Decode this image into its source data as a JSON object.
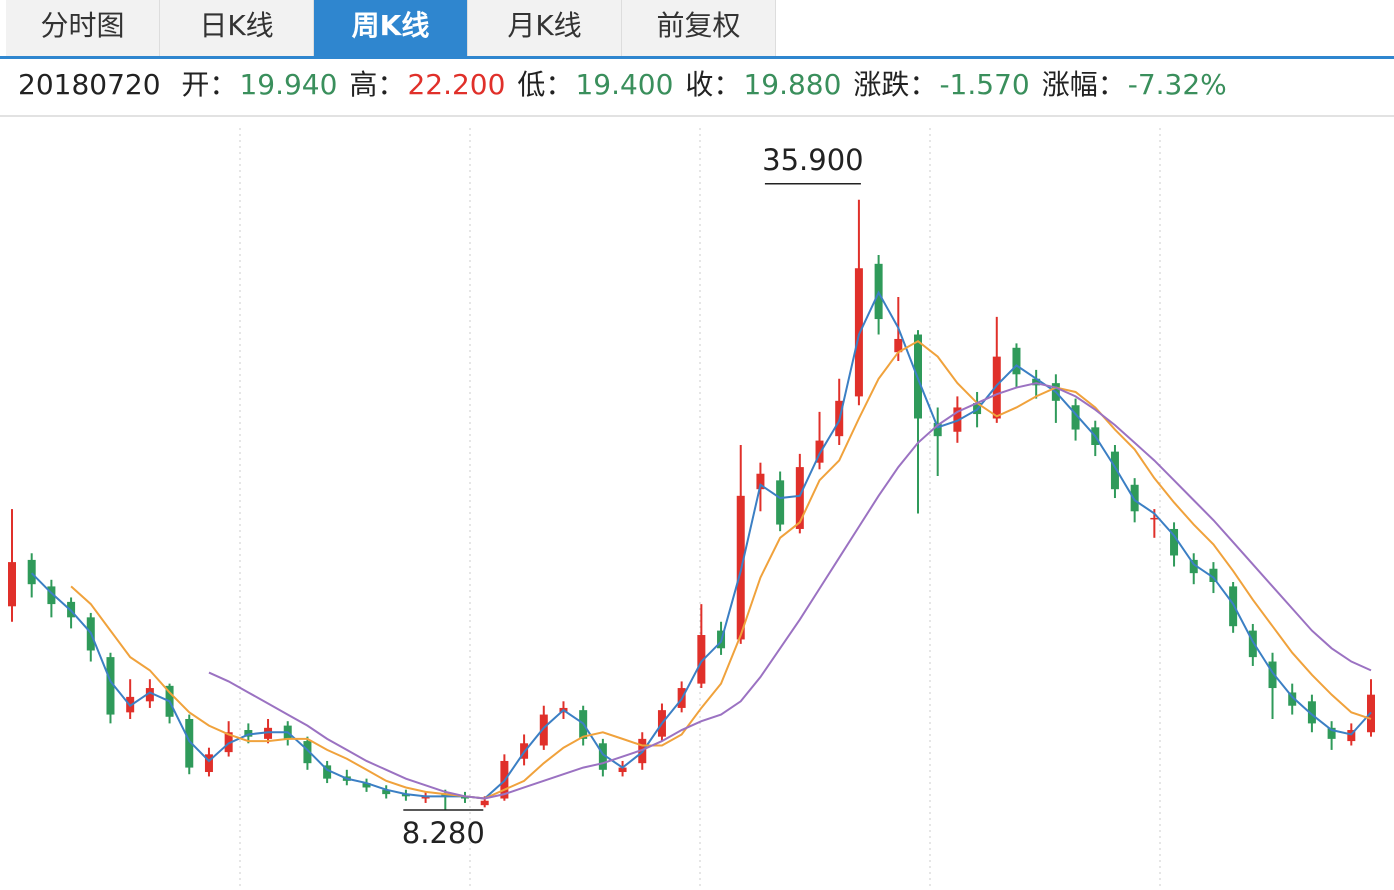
{
  "tabs": [
    "分时图",
    "日K线",
    "周K线",
    "月K线",
    "前复权"
  ],
  "active_tab": 2,
  "info": {
    "date": "20180720",
    "fields": [
      {
        "label": "开：",
        "value": "19.940",
        "color": "#3a8f5c"
      },
      {
        "label": "高：",
        "value": "22.200",
        "color": "#e0302a"
      },
      {
        "label": "低：",
        "value": "19.400",
        "color": "#3a8f5c"
      },
      {
        "label": "收：",
        "value": "19.880",
        "color": "#3a8f5c"
      },
      {
        "label": "涨跌：",
        "value": "-1.570",
        "color": "#3a8f5c"
      },
      {
        "label": "涨幅：",
        "value": "-7.32%",
        "color": "#3a8f5c"
      }
    ]
  },
  "chart_data": {
    "type": "candlestick",
    "up_color": "#e0302a",
    "down_color": "#2f9a5a",
    "ylim": [
      4.66,
      39.6
    ],
    "grid": true,
    "max_label": "35.900",
    "min_label": "8.280",
    "open": [
      17.5,
      19.6,
      18.4,
      17.7,
      17.0,
      15.2,
      12.7,
      13.2,
      13.9,
      12.4,
      10.0,
      10.9,
      11.9,
      11.5,
      12.1,
      11.4,
      10.3,
      9.8,
      9.5,
      9.2,
      9.0,
      8.8,
      9.0,
      8.9,
      8.5,
      8.8,
      10.6,
      11.2,
      12.7,
      12.8,
      11.3,
      10.0,
      10.4,
      11.6,
      12.9,
      14.0,
      16.4,
      16.0,
      22.8,
      23.2,
      21.0,
      24.0,
      25.2,
      27.0,
      33.0,
      29.0,
      29.8,
      25.8,
      25.4,
      26.7,
      26.0,
      29.2,
      27.8,
      27.6,
      26.6,
      25.6,
      24.5,
      23.0,
      21.5,
      21.0,
      19.6,
      19.2,
      18.4,
      16.4,
      15.0,
      13.6,
      13.2,
      12.0,
      11.4,
      11.8
    ],
    "high": [
      21.9,
      19.9,
      18.7,
      17.9,
      17.2,
      15.4,
      14.2,
      14.2,
      14.0,
      12.6,
      11.1,
      12.3,
      12.2,
      12.4,
      12.3,
      11.6,
      10.5,
      10.1,
      9.7,
      9.4,
      9.2,
      9.1,
      9.2,
      9.1,
      8.9,
      10.8,
      11.7,
      13.0,
      13.2,
      13.0,
      11.5,
      10.5,
      11.8,
      13.1,
      14.1,
      17.6,
      16.8,
      24.8,
      24.0,
      23.6,
      24.4,
      26.3,
      27.8,
      35.9,
      33.4,
      31.5,
      30.0,
      26.5,
      27.0,
      27.2,
      30.6,
      29.4,
      28.2,
      28.0,
      26.9,
      25.9,
      24.8,
      23.3,
      21.9,
      21.3,
      19.9,
      19.5,
      18.6,
      16.7,
      15.4,
      14.0,
      13.5,
      12.3,
      12.2,
      14.2
    ],
    "low": [
      16.8,
      17.9,
      17.0,
      16.5,
      15.0,
      12.2,
      12.4,
      12.9,
      12.2,
      9.9,
      9.8,
      10.7,
      11.3,
      11.3,
      11.2,
      10.1,
      9.5,
      9.4,
      9.1,
      8.8,
      8.7,
      8.6,
      8.28,
      8.6,
      8.4,
      8.7,
      10.3,
      11.0,
      12.4,
      11.2,
      9.8,
      9.8,
      10.1,
      11.4,
      12.7,
      13.8,
      15.3,
      15.8,
      21.8,
      20.9,
      20.8,
      23.7,
      24.8,
      26.6,
      29.8,
      28.6,
      21.7,
      23.4,
      24.9,
      25.6,
      25.8,
      27.4,
      26.9,
      25.8,
      25.0,
      24.3,
      22.4,
      21.3,
      20.6,
      19.3,
      18.5,
      18.1,
      16.3,
      14.8,
      12.4,
      12.6,
      11.8,
      11.0,
      11.2,
      11.6
    ],
    "close": [
      19.5,
      18.5,
      17.6,
      17.0,
      15.5,
      12.6,
      13.4,
      13.8,
      12.5,
      10.2,
      10.8,
      11.8,
      11.6,
      12.0,
      11.5,
      10.4,
      9.7,
      9.6,
      9.3,
      9.0,
      8.9,
      8.9,
      8.9,
      8.8,
      8.7,
      10.5,
      11.3,
      12.6,
      12.9,
      11.5,
      10.1,
      10.2,
      11.5,
      12.8,
      13.8,
      16.2,
      15.6,
      22.5,
      23.5,
      21.2,
      23.8,
      25.0,
      26.8,
      32.8,
      30.5,
      29.6,
      26.0,
      25.2,
      26.5,
      26.2,
      28.8,
      28.0,
      27.5,
      26.8,
      25.5,
      24.8,
      22.8,
      21.8,
      21.5,
      19.8,
      19.0,
      18.6,
      16.6,
      15.2,
      13.8,
      13.0,
      12.2,
      11.5,
      11.9,
      13.5
    ],
    "series": [
      {
        "color": "#3b7fc4",
        "values": [
          null,
          19.0,
          18.1,
          17.3,
          16.3,
          14.1,
          13.0,
          13.6,
          13.2,
          11.4,
          10.5,
          11.3,
          11.7,
          11.8,
          11.8,
          11.0,
          10.1,
          9.7,
          9.5,
          9.2,
          9.0,
          8.9,
          8.9,
          8.9,
          8.8,
          9.6,
          10.9,
          12.0,
          12.8,
          12.2,
          10.8,
          10.2,
          10.9,
          12.2,
          13.3,
          15.0,
          15.9,
          19.1,
          23.0,
          22.4,
          22.5,
          24.4,
          25.9,
          29.8,
          31.7,
          30.1,
          27.8,
          25.6,
          25.9,
          26.4,
          27.5,
          28.4,
          27.8,
          27.2,
          26.2,
          25.2,
          23.8,
          22.3,
          21.7,
          20.7,
          19.4,
          18.8,
          17.6,
          15.9,
          14.5,
          13.4,
          12.6,
          11.9,
          11.7,
          12.7
        ]
      },
      {
        "color": "#f0a23c",
        "values": [
          null,
          null,
          null,
          18.4,
          17.6,
          16.4,
          15.2,
          14.6,
          13.6,
          12.7,
          12.1,
          11.7,
          11.4,
          11.4,
          11.5,
          11.5,
          11.0,
          10.6,
          10.1,
          9.6,
          9.3,
          9.1,
          9.0,
          8.9,
          8.8,
          9.2,
          9.6,
          10.4,
          11.1,
          11.6,
          11.8,
          11.5,
          11.2,
          11.2,
          11.7,
          12.9,
          14.0,
          16.2,
          18.8,
          20.6,
          21.3,
          23.2,
          24.1,
          26.0,
          27.8,
          29.0,
          29.5,
          28.8,
          27.6,
          26.7,
          26.1,
          26.5,
          27.0,
          27.4,
          27.2,
          26.5,
          25.5,
          24.6,
          23.3,
          22.2,
          21.2,
          20.3,
          19.1,
          17.8,
          16.6,
          15.4,
          14.4,
          13.5,
          12.7,
          12.4
        ]
      },
      {
        "color": "#9b72c2",
        "values": [
          null,
          null,
          null,
          null,
          null,
          null,
          null,
          null,
          null,
          null,
          14.5,
          14.1,
          13.6,
          13.1,
          12.6,
          12.1,
          11.5,
          11.0,
          10.5,
          10.1,
          9.7,
          9.4,
          9.1,
          8.9,
          8.8,
          9.0,
          9.3,
          9.6,
          9.9,
          10.2,
          10.4,
          10.7,
          11.0,
          11.4,
          11.9,
          12.3,
          12.6,
          13.2,
          14.3,
          15.6,
          16.9,
          18.3,
          19.7,
          21.1,
          22.5,
          23.8,
          24.9,
          25.7,
          26.3,
          26.7,
          27.1,
          27.4,
          27.6,
          27.4,
          27.0,
          26.4,
          25.7,
          24.9,
          24.1,
          23.2,
          22.3,
          21.4,
          20.4,
          19.4,
          18.4,
          17.4,
          16.4,
          15.6,
          15.0,
          14.6
        ]
      }
    ]
  }
}
